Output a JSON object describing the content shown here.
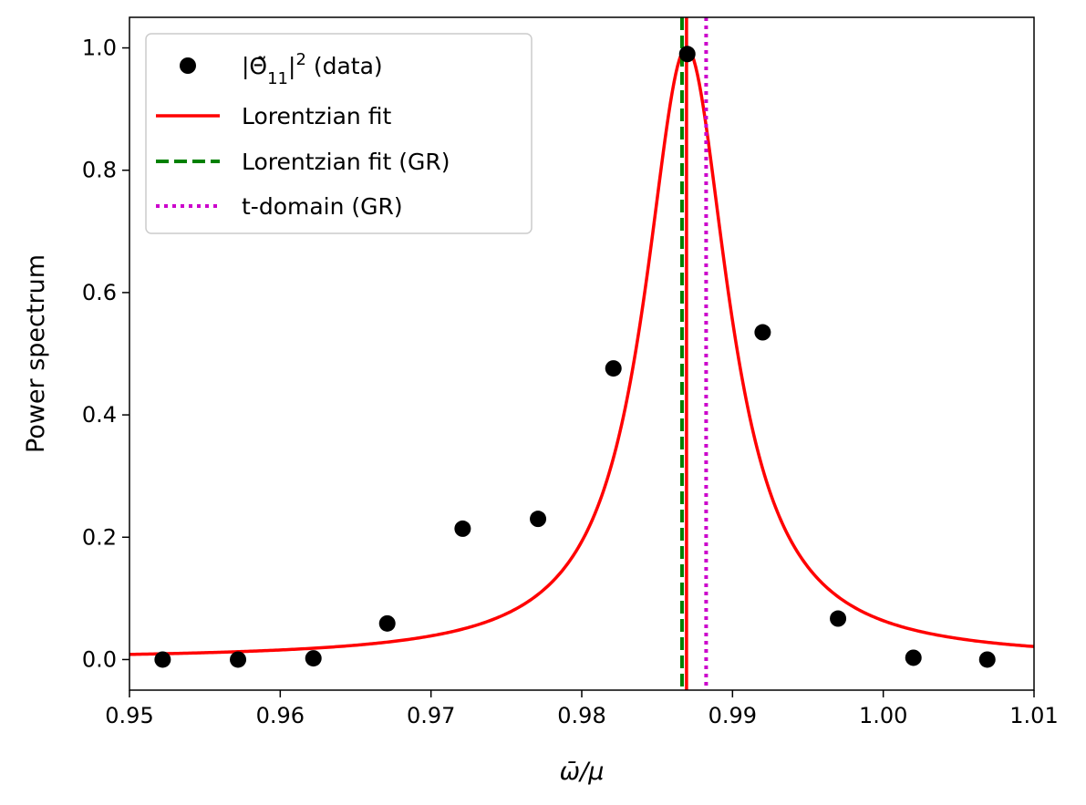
{
  "chart_data": {
    "type": "scatter",
    "title": "",
    "xlabel": "ω̄/μ",
    "ylabel": "Power spectrum",
    "xlim": [
      0.95,
      1.01
    ],
    "ylim": [
      -0.05,
      1.05
    ],
    "xticks": [
      0.95,
      0.96,
      0.97,
      0.98,
      0.99,
      1.0,
      1.01
    ],
    "xtick_labels": [
      "0.95",
      "0.96",
      "0.97",
      "0.98",
      "0.99",
      "1.00",
      "1.01"
    ],
    "yticks": [
      0.0,
      0.2,
      0.4,
      0.6,
      0.8,
      1.0
    ],
    "ytick_labels": [
      "0.0",
      "0.2",
      "0.4",
      "0.6",
      "0.8",
      "1.0"
    ],
    "series": [
      {
        "name": "|Θ̃₁₁|² (data)",
        "kind": "scatter",
        "color": "#000000",
        "x": [
          0.9522,
          0.9572,
          0.9622,
          0.9671,
          0.9721,
          0.9771,
          0.9821,
          0.987,
          0.992,
          0.997,
          1.002,
          1.0069
        ],
        "y": [
          0.0,
          0.0,
          0.002,
          0.059,
          0.214,
          0.23,
          0.476,
          0.99,
          0.535,
          0.067,
          0.003,
          0.0
        ]
      },
      {
        "name": "Lorentzian fit",
        "kind": "curve",
        "color": "#ff0000",
        "center": 0.98695,
        "half_width": 0.0034,
        "amplitude": 1.0
      },
      {
        "name": "Lorentzian fit (GR)",
        "kind": "vline",
        "style": "dashed",
        "color": "#008000",
        "x": 0.98665
      },
      {
        "name": "t-domain (GR)",
        "kind": "vline",
        "style": "dotted",
        "color": "#cc00cc",
        "x": 0.98825
      }
    ],
    "center_line": {
      "color": "#ff0000",
      "x": 0.98695
    },
    "legend": {
      "position": "top-left",
      "entries": [
        {
          "pre": "|Θ̃",
          "sub": "11",
          "mid": "|",
          "sup": "2",
          "post": " (data)"
        },
        {
          "text": "Lorentzian fit"
        },
        {
          "text": "Lorentzian fit (GR)"
        },
        {
          "text": "t-domain (GR)"
        }
      ]
    }
  }
}
